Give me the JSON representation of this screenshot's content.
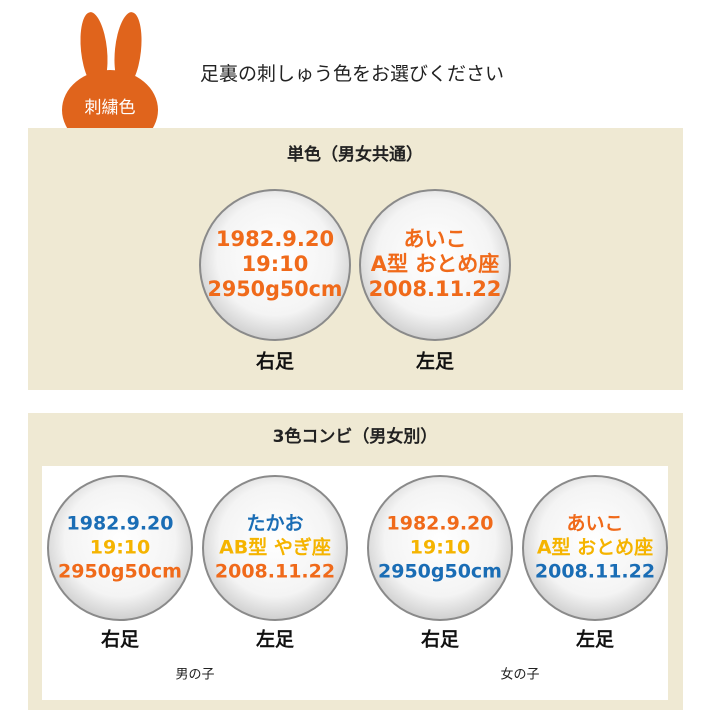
{
  "header": {
    "badge": "刺繍色",
    "title": "足裏の刺しゅう色をお選びください"
  },
  "sections": [
    {
      "title": "単色（男女共通）",
      "groups": [
        {
          "circles": [
            {
              "lines": [
                {
                  "text": "1982.9.20",
                  "color": "#f06a1a"
                },
                {
                  "text": "19:10",
                  "color": "#f06a1a"
                },
                {
                  "text": "2950g50cm",
                  "color": "#f06a1a"
                }
              ],
              "label": "右足"
            },
            {
              "lines": [
                {
                  "text": "あいこ",
                  "color": "#f06a1a"
                },
                {
                  "text": "A型 おとめ座",
                  "color": "#f06a1a"
                },
                {
                  "text": "2008.11.22",
                  "color": "#f06a1a"
                }
              ],
              "label": "左足"
            }
          ]
        }
      ]
    },
    {
      "title": "3色コンビ（男女別）",
      "groups": [
        {
          "caption": "男の子",
          "circles": [
            {
              "lines": [
                {
                  "text": "1982.9.20",
                  "color": "#1a6db5"
                },
                {
                  "text": "19:10",
                  "color": "#f5b400"
                },
                {
                  "text": "2950g50cm",
                  "color": "#f06a1a"
                }
              ],
              "label": "右足"
            },
            {
              "lines": [
                {
                  "text": "たかお",
                  "color": "#1a6db5"
                },
                {
                  "text": "AB型 やぎ座",
                  "color": "#f5b400"
                },
                {
                  "text": "2008.11.22",
                  "color": "#f06a1a"
                }
              ],
              "label": "左足"
            }
          ]
        },
        {
          "caption": "女の子",
          "circles": [
            {
              "lines": [
                {
                  "text": "1982.9.20",
                  "color": "#f06a1a"
                },
                {
                  "text": "19:10",
                  "color": "#f5b400"
                },
                {
                  "text": "2950g50cm",
                  "color": "#1a6db5"
                }
              ],
              "label": "右足"
            },
            {
              "lines": [
                {
                  "text": "あいこ",
                  "color": "#f06a1a"
                },
                {
                  "text": "A型 おとめ座",
                  "color": "#f5b400"
                },
                {
                  "text": "2008.11.22",
                  "color": "#1a6db5"
                }
              ],
              "label": "左足"
            }
          ]
        }
      ]
    }
  ]
}
